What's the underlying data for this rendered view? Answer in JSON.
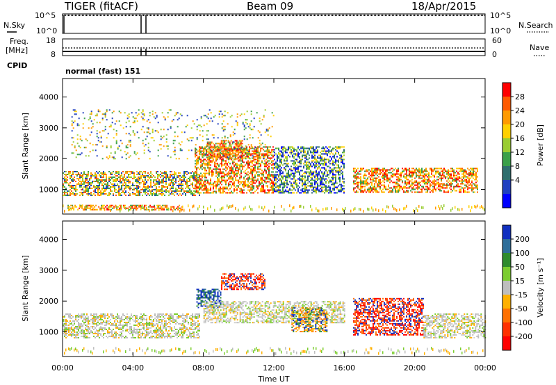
{
  "header": {
    "station": "TIGER (fitACF)",
    "beam": "Beam 09",
    "date": "18/Apr/2015"
  },
  "panels": {
    "nsky_label": "N.Sky",
    "nsearch_label": "N.Search",
    "noise_ticks_left": [
      "10^5",
      "10^0"
    ],
    "noise_ticks_right": [
      "10^5",
      "10^0"
    ],
    "freq_label": "Freq.",
    "freq_unit": "[MHz]",
    "freq_ticks": [
      "18",
      "8"
    ],
    "nave_label": "Nave",
    "nave_ticks": [
      "60",
      "0"
    ],
    "cpid_label": "CPID",
    "cpid_text": "normal (fast) 151"
  },
  "chart_data": [
    {
      "type": "heatmap",
      "name": "power",
      "ylabel": "Slant Range [km]",
      "yticks": [
        "4000",
        "3000",
        "2000",
        "1000"
      ],
      "ylim": [
        200,
        4600
      ],
      "xlim": [
        0,
        24
      ],
      "colorbar": {
        "label": "Power [dB]",
        "ticks": [
          "28",
          "24",
          "20",
          "16",
          "12",
          "8",
          "4"
        ],
        "colors": [
          "#ff0000",
          "#ff5a00",
          "#ff9a00",
          "#ffd000",
          "#9acd32",
          "#3aa04a",
          "#2e6e6e",
          "#2040c0",
          "#0000ff"
        ]
      },
      "features": [
        {
          "t0": 0.0,
          "t1": 7.8,
          "r0": 800,
          "r1": 1600,
          "level": "mid"
        },
        {
          "t0": 0.2,
          "t1": 6.8,
          "r0": 350,
          "r1": 500,
          "level": "high"
        },
        {
          "t0": 7.5,
          "t1": 12.0,
          "r0": 900,
          "r1": 2400,
          "level": "high"
        },
        {
          "t0": 8.2,
          "t1": 10.2,
          "r0": 2000,
          "r1": 2600,
          "level": "high"
        },
        {
          "t0": 12.0,
          "t1": 16.0,
          "r0": 900,
          "r1": 2400,
          "level": "low"
        },
        {
          "t0": 16.5,
          "t1": 23.6,
          "r0": 900,
          "r1": 1700,
          "level": "high"
        },
        {
          "t0": 0.5,
          "t1": 12.0,
          "r0": 2000,
          "r1": 3600,
          "level": "sparse"
        }
      ]
    },
    {
      "type": "heatmap",
      "name": "velocity",
      "ylabel": "Slant Range [km]",
      "yticks": [
        "4000",
        "3000",
        "2000",
        "1000"
      ],
      "ylim": [
        200,
        4600
      ],
      "xlim": [
        0,
        24
      ],
      "colorbar": {
        "label": "Velocity [m s⁻¹]",
        "ticks": [
          "200",
          "100",
          "50",
          "15",
          "-15",
          "-50",
          "-100",
          "-200"
        ],
        "colors": [
          "#1030c0",
          "#2e6e9a",
          "#2e8b2e",
          "#7ccd30",
          "#bebebe",
          "#ffb000",
          "#ff7000",
          "#ff3000",
          "#ff0000"
        ]
      },
      "features": [
        {
          "t0": 0.0,
          "t1": 7.8,
          "r0": 800,
          "r1": 1600,
          "level": "gray"
        },
        {
          "t0": 7.6,
          "t1": 9.0,
          "r0": 1800,
          "r1": 2400,
          "level": "blue"
        },
        {
          "t0": 9.0,
          "t1": 11.5,
          "r0": 2400,
          "r1": 2900,
          "level": "red"
        },
        {
          "t0": 8.0,
          "t1": 16.0,
          "r0": 1300,
          "r1": 2000,
          "level": "gray"
        },
        {
          "t0": 13.0,
          "t1": 15.0,
          "r0": 1000,
          "r1": 1800,
          "level": "orange"
        },
        {
          "t0": 16.5,
          "t1": 20.5,
          "r0": 900,
          "r1": 2100,
          "level": "red"
        },
        {
          "t0": 20.5,
          "t1": 24.0,
          "r0": 800,
          "r1": 1600,
          "level": "gray"
        }
      ]
    }
  ],
  "time_axis": {
    "ticks": [
      "00:00",
      "04:00",
      "08:00",
      "12:00",
      "16:00",
      "20:00",
      "00:00"
    ],
    "label": "Time UT"
  }
}
